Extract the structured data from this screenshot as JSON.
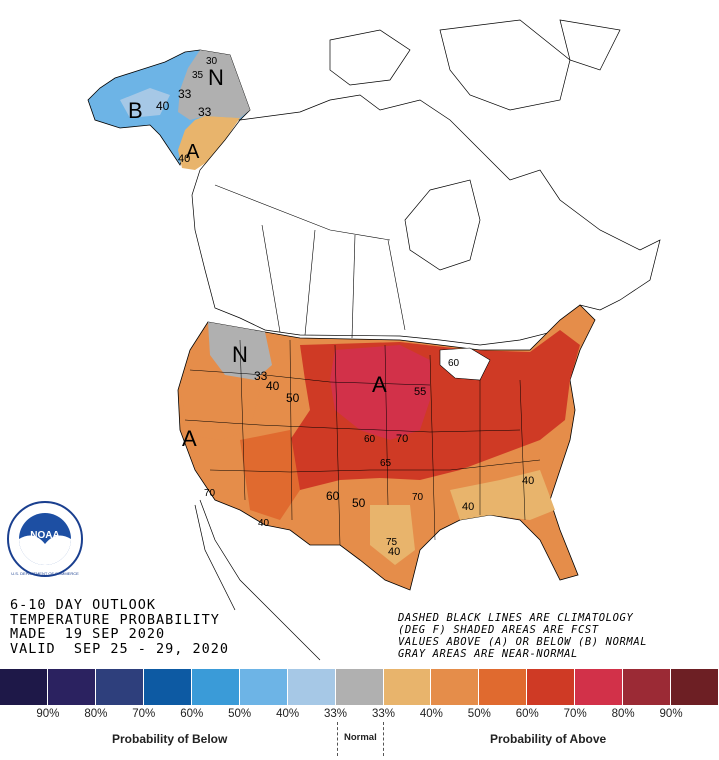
{
  "title": {
    "line1": "6-10 DAY OUTLOOK",
    "line2": "TEMPERATURE PROBABILITY",
    "line3": "MADE  19 SEP 2020",
    "line4": "VALID  SEP 25 - 29, 2020"
  },
  "notes": {
    "line1": "DASHED BLACK LINES ARE CLIMATOLOGY",
    "line2": "(DEG F) SHADED AREAS ARE FCST",
    "line3": "VALUES ABOVE (A) OR BELOW (B) NORMAL",
    "line4": "GRAY AREAS ARE NEAR-NORMAL"
  },
  "logo": {
    "text": "NOAA",
    "ring_text": "U.S. DEPARTMENT OF COMMERCE"
  },
  "map_labels": {
    "alaska_b": "B",
    "alaska_n": "N",
    "alaska_a": "A",
    "nw_n": "N",
    "west_a": "A",
    "central_a": "A",
    "c30": "30",
    "c35": "35",
    "c33a": "33",
    "c40a": "40",
    "c33b": "33",
    "c40b": "40",
    "c33c": "33",
    "c40c": "40",
    "c50a": "50",
    "c55": "55",
    "c60a": "60",
    "c70a": "70",
    "c65": "65",
    "c60b": "60",
    "c50b": "50",
    "c70b": "70",
    "c40d": "40",
    "c40e": "40",
    "c75": "75",
    "c40f": "40",
    "c70c": "70",
    "c40g": "40",
    "c60c": "60"
  },
  "colorbar": {
    "colors": [
      "#1e1848",
      "#2b2260",
      "#2e3f7c",
      "#0d5aa3",
      "#3a9bd8",
      "#6db4e6",
      "#a6c8e6",
      "#b0b0b0",
      "#e8b46c",
      "#e58d4a",
      "#e06a2f",
      "#cf3a25",
      "#d23149",
      "#9b2a35",
      "#6d1f24"
    ],
    "tick_labels": [
      "90%",
      "80%",
      "70%",
      "60%",
      "50%",
      "40%",
      "33%",
      "33%",
      "40%",
      "50%",
      "60%",
      "70%",
      "80%",
      "90%"
    ]
  },
  "legend": {
    "below": "Probability of Below",
    "normal": "Normal",
    "above": "Probability of Above"
  }
}
